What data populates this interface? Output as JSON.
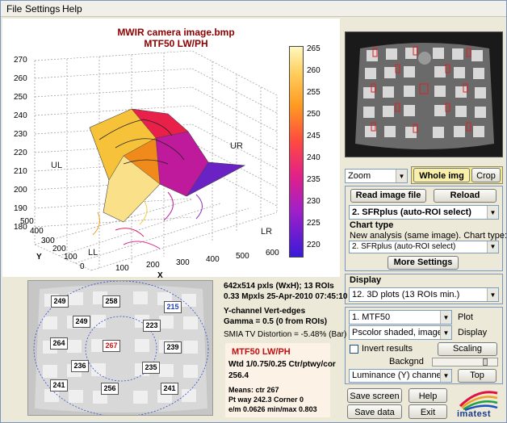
{
  "menu": [
    "File",
    "Settings",
    "Help"
  ],
  "plot": {
    "title_line1": "MWIR camera image.bmp",
    "title_line2": "MTF50 LW/PH",
    "x_label": "X",
    "y_label": "Y",
    "y_ticks": [
      "270",
      "260",
      "250",
      "240",
      "230",
      "220",
      "210",
      "200",
      "190",
      "180"
    ],
    "x_ticks": [
      "100",
      "200",
      "300",
      "400",
      "500",
      "600"
    ],
    "y_axis_ticks": [
      "0",
      "100",
      "200",
      "300",
      "400",
      "500"
    ],
    "colorbar_ticks": [
      "265",
      "260",
      "255",
      "250",
      "245",
      "240",
      "235",
      "230",
      "225",
      "220"
    ],
    "corner_labels": [
      "UL",
      "UR",
      "LL",
      "LR"
    ]
  },
  "controls": {
    "zoom_value": "Zoom",
    "whole_img": "Whole img",
    "crop": "Crop",
    "read_image": "Read image file",
    "reload": "Reload",
    "analysis_select": "2. SFRplus (auto-ROI select)",
    "chart_type_label": "Chart type",
    "chart_type_hint": "New analysis (same image). Chart type:",
    "chart_type_select": "2. SFRplus (auto-ROI select)",
    "more_settings": "More Settings",
    "display_label": "Display",
    "display_select": "12. 3D plots (13 ROIs min.)",
    "plot_select": "1.  MTF50",
    "plot_label": "Plot",
    "display_mode_select": "Pscolor shaded, image ...",
    "display_mode_label": "Display",
    "invert_label": "Invert results",
    "scaling": "Scaling",
    "backgnd_label": "Backgnd",
    "channel_select": "Luminance (Y) channel",
    "top": "Top",
    "save_screen": "Save screen",
    "help": "Help",
    "save_data": "Save data",
    "exit": "Exit",
    "logo_text": "imatest"
  },
  "info": {
    "line1": "642x514 pxls (WxH);  13 ROIs",
    "line2": "0.33 Mpxls   25-Apr-2010 07:45:10",
    "line3": "Y-channel  Vert-edges",
    "line4": "Gamma = 0.5  (0 from ROIs)",
    "line5": "SMIA TV Distortion = -5.48%  (Bar)"
  },
  "summary": {
    "title": "MTF50 LW/PH",
    "line1": "Wtd 1/0.75/0.25 Ctr/ptwy/cor",
    "line2": "256.4",
    "line3": "Means:  ctr  267",
    "line4": "Pt way  242.3  Corner  0",
    "line5": "e/m  0.0626   min/max  0.803"
  },
  "rois": [
    {
      "label": "249",
      "color": "#000000"
    },
    {
      "label": "258",
      "color": "#000000"
    },
    {
      "label": "215",
      "color": "#1a3cc8"
    },
    {
      "label": "249",
      "color": "#000000"
    },
    {
      "label": "223",
      "color": "#000000"
    },
    {
      "label": "264",
      "color": "#000000"
    },
    {
      "label": "267",
      "color": "#d01010"
    },
    {
      "label": "239",
      "color": "#000000"
    },
    {
      "label": "236",
      "color": "#000000"
    },
    {
      "label": "235",
      "color": "#000000"
    },
    {
      "label": "241",
      "color": "#000000"
    },
    {
      "label": "256",
      "color": "#000000"
    },
    {
      "label": "241",
      "color": "#000000"
    }
  ]
}
